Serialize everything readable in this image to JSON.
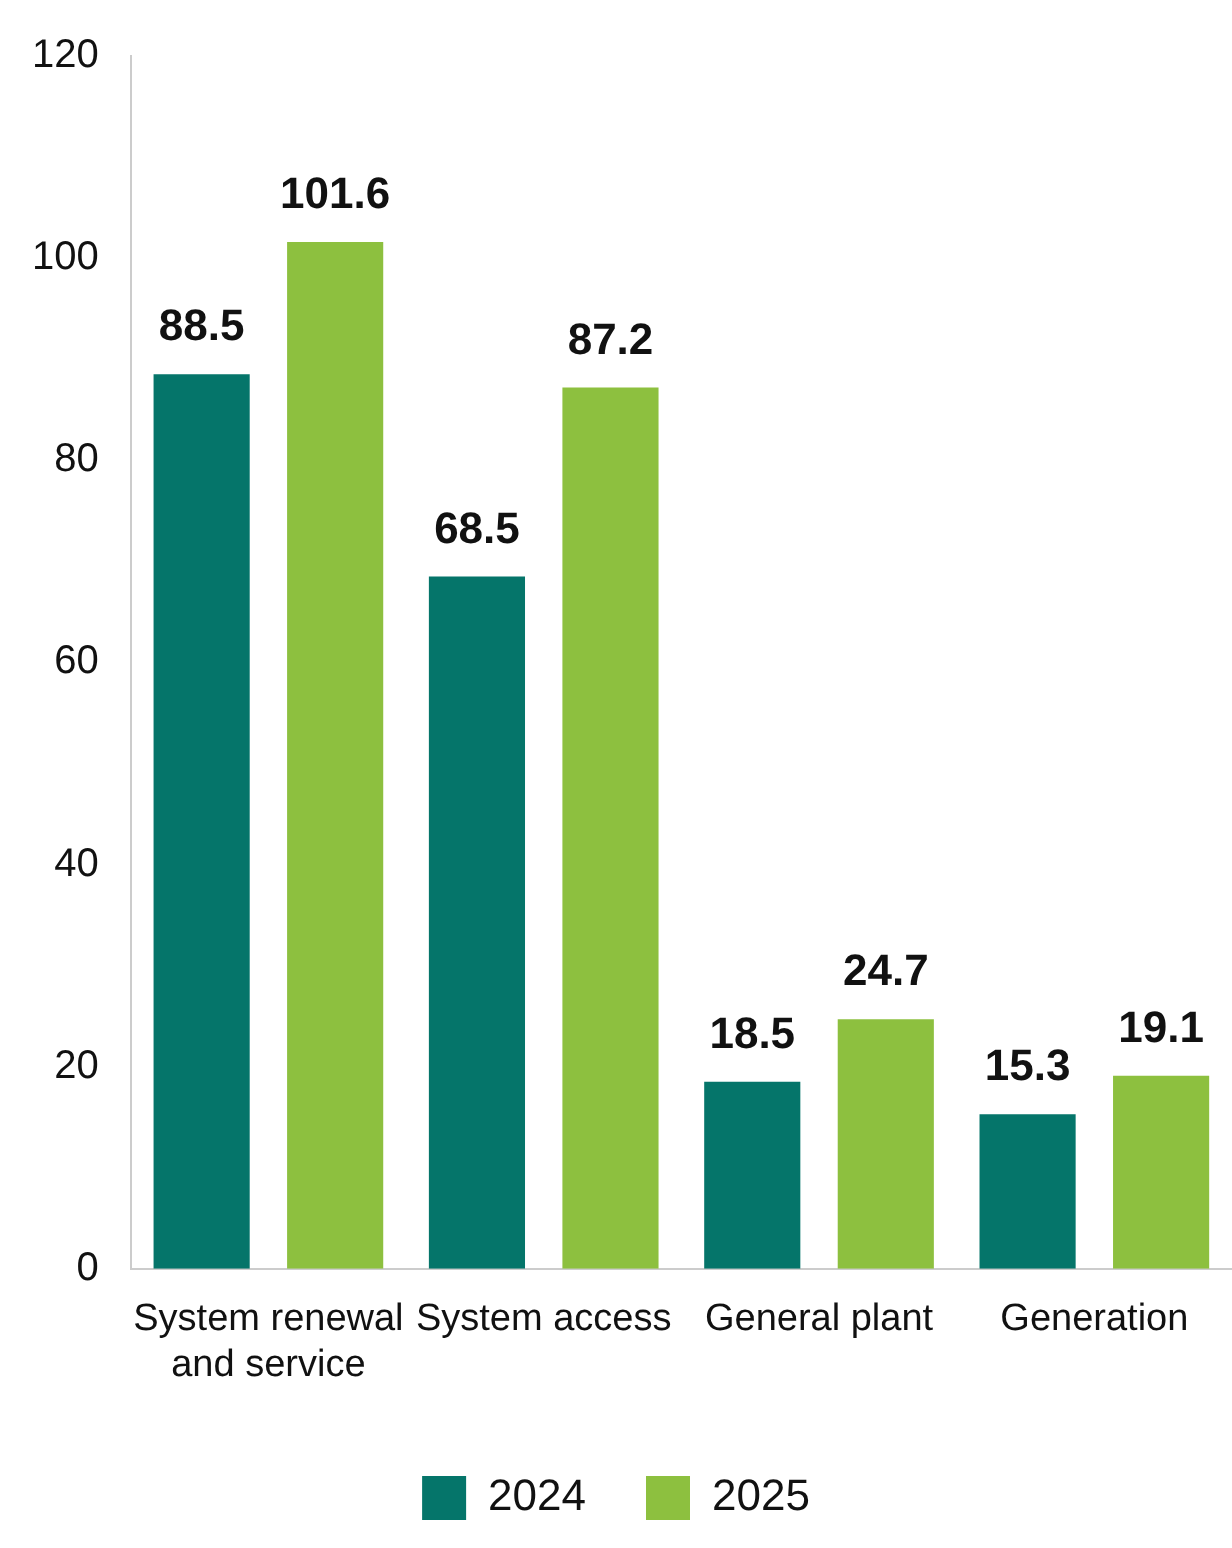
{
  "chart_data": {
    "type": "bar",
    "categories": [
      "System renewal and service",
      "System access",
      "General plant",
      "Generation"
    ],
    "series": [
      {
        "name": "2024",
        "color": "#05756a",
        "values": [
          88.5,
          68.5,
          18.5,
          15.3
        ]
      },
      {
        "name": "2025",
        "color": "#8dc03f",
        "values": [
          101.6,
          87.2,
          24.7,
          19.1
        ]
      }
    ],
    "ylim": [
      0,
      120
    ],
    "yticks": [
      0,
      20,
      40,
      60,
      80,
      100,
      120
    ],
    "grid": false,
    "legend": "bottom",
    "data_labels": true
  }
}
